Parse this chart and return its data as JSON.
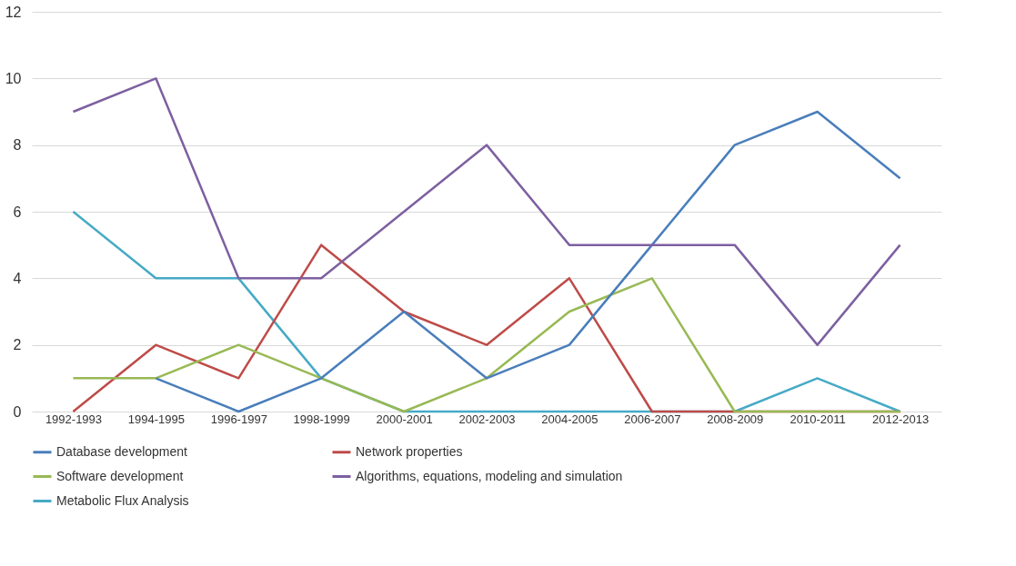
{
  "chart_data": {
    "type": "line",
    "categories": [
      "1992-1993",
      "1994-1995",
      "1996-1997",
      "1998-1999",
      "2000-2001",
      "2002-2003",
      "2004-2005",
      "2006-2007",
      "2008-2009",
      "2010-2011",
      "2012-2013"
    ],
    "series": [
      {
        "name": "Database development",
        "color": "#4a7ebb",
        "values": [
          null,
          1,
          0,
          1,
          3,
          1,
          2,
          5,
          8,
          9,
          7
        ]
      },
      {
        "name": "Network properties",
        "color": "#be4b48",
        "values": [
          0,
          2,
          1,
          5,
          3,
          2,
          4,
          0,
          0,
          0,
          0
        ]
      },
      {
        "name": "Software development",
        "color": "#98b954",
        "values": [
          1,
          1,
          2,
          1,
          0,
          1,
          3,
          4,
          0,
          0,
          0
        ]
      },
      {
        "name": "Algorithms, equations, modeling and simulation",
        "color": "#7d60a0",
        "values": [
          9,
          10,
          4,
          4,
          6,
          8,
          5,
          5,
          5,
          2,
          5
        ]
      },
      {
        "name": "Metabolic Flux Analysis",
        "color": "#46aac5",
        "values": [
          6,
          4,
          4,
          1,
          0,
          0,
          0,
          0,
          0,
          1,
          0
        ]
      }
    ],
    "ylim": [
      0,
      12
    ],
    "yticks": [
      0,
      2,
      4,
      6,
      8,
      10,
      12
    ],
    "grid": "y",
    "legend": "bottom"
  }
}
